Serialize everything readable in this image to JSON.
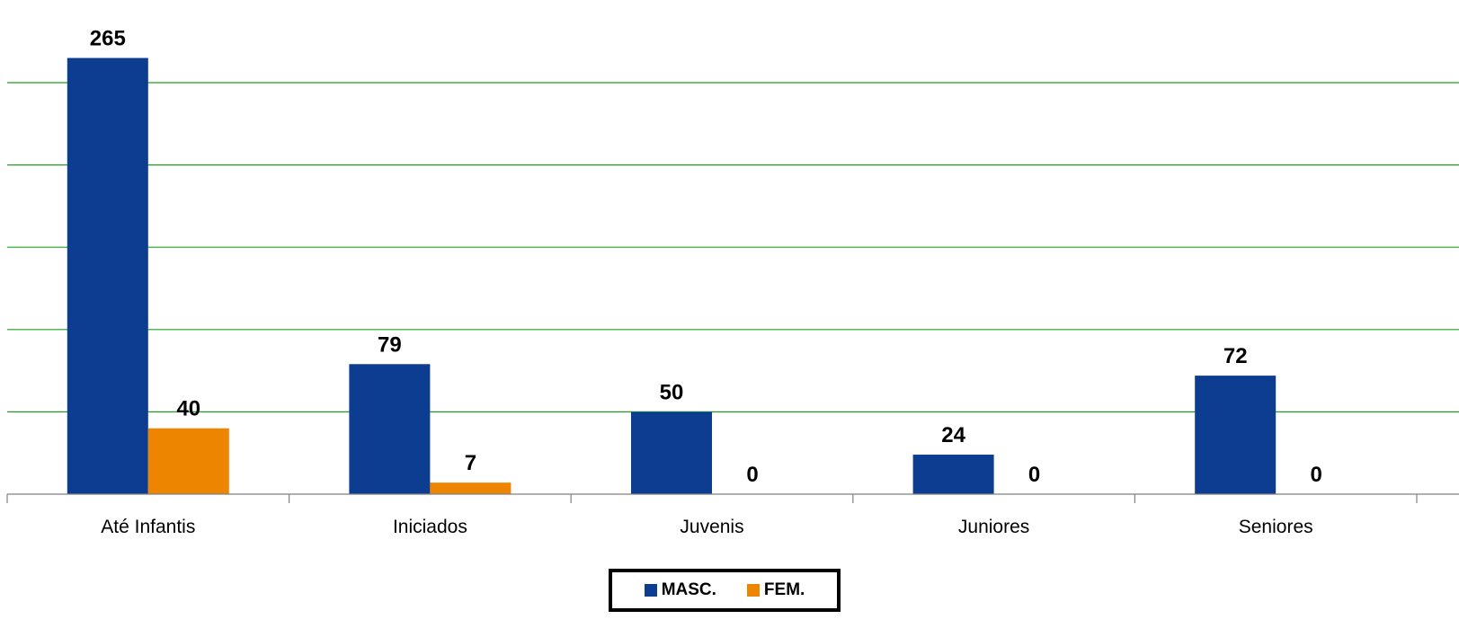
{
  "chart_data": {
    "type": "bar",
    "categories": [
      "Até Infantis",
      "Iniciados",
      "Juvenis",
      "Juniores",
      "Seniores"
    ],
    "series": [
      {
        "name": "MASC.",
        "values": [
          265,
          79,
          50,
          24,
          72
        ],
        "color": "#0d3d91"
      },
      {
        "name": "FEM.",
        "values": [
          40,
          7,
          0,
          0,
          0
        ],
        "color": "#ee8500"
      }
    ],
    "ylim": [
      0,
      300
    ],
    "grid_step": 50,
    "grid": true,
    "grid_color": "#22a022",
    "legend_position": "bottom"
  }
}
